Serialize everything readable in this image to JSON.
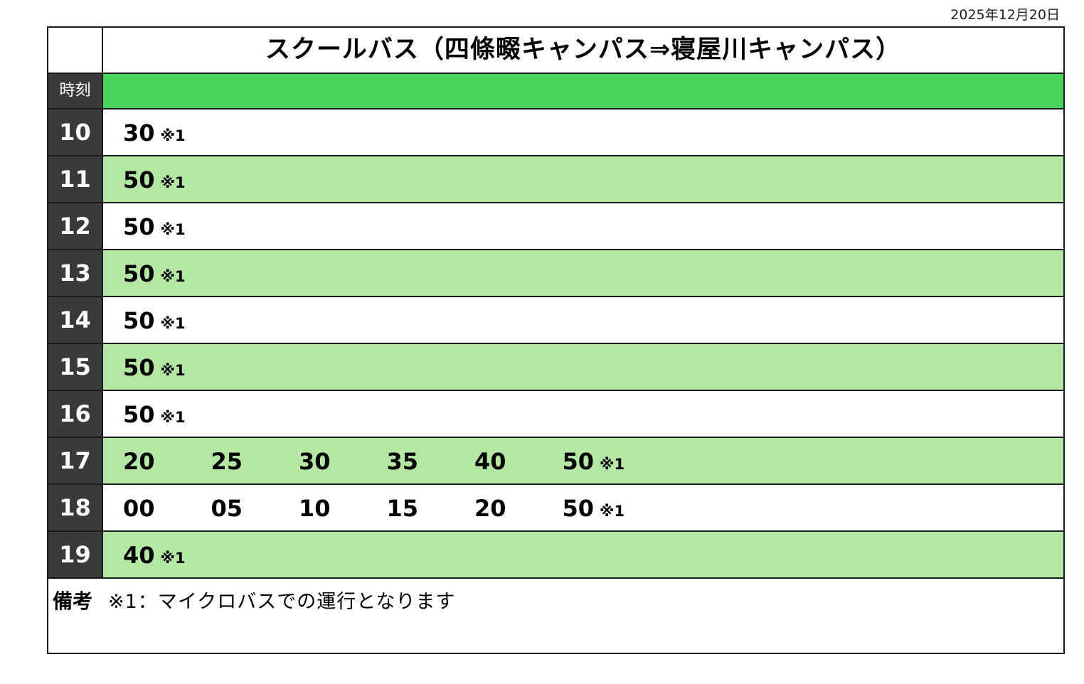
{
  "date": "2025年12月20日",
  "title": "スクールバス（四條畷キャンパス⇒寝屋川キャンパス）",
  "header": {
    "time_label": "時刻"
  },
  "rows": [
    {
      "hour": "10",
      "minutes": [
        {
          "m": "30",
          "note": "※1"
        }
      ]
    },
    {
      "hour": "11",
      "minutes": [
        {
          "m": "50",
          "note": "※1"
        }
      ]
    },
    {
      "hour": "12",
      "minutes": [
        {
          "m": "50",
          "note": "※1"
        }
      ]
    },
    {
      "hour": "13",
      "minutes": [
        {
          "m": "50",
          "note": "※1"
        }
      ]
    },
    {
      "hour": "14",
      "minutes": [
        {
          "m": "50",
          "note": "※1"
        }
      ]
    },
    {
      "hour": "15",
      "minutes": [
        {
          "m": "50",
          "note": "※1"
        }
      ]
    },
    {
      "hour": "16",
      "minutes": [
        {
          "m": "50",
          "note": "※1"
        }
      ]
    },
    {
      "hour": "17",
      "minutes": [
        {
          "m": "20",
          "note": ""
        },
        {
          "m": "25",
          "note": ""
        },
        {
          "m": "30",
          "note": ""
        },
        {
          "m": "35",
          "note": ""
        },
        {
          "m": "40",
          "note": ""
        },
        {
          "m": "50",
          "note": "※1"
        }
      ]
    },
    {
      "hour": "18",
      "minutes": [
        {
          "m": "00",
          "note": ""
        },
        {
          "m": "05",
          "note": ""
        },
        {
          "m": "10",
          "note": ""
        },
        {
          "m": "15",
          "note": ""
        },
        {
          "m": "20",
          "note": ""
        },
        {
          "m": "50",
          "note": "※1"
        }
      ]
    },
    {
      "hour": "19",
      "minutes": [
        {
          "m": "40",
          "note": "※1"
        }
      ]
    }
  ],
  "remarks": {
    "label": "備考",
    "text": "※1：マイクロバスでの運行となります"
  },
  "colors": {
    "header_band": "#48d45a",
    "alt_row": "#b4e6a4",
    "hour_cell": "#3a3a3a"
  }
}
